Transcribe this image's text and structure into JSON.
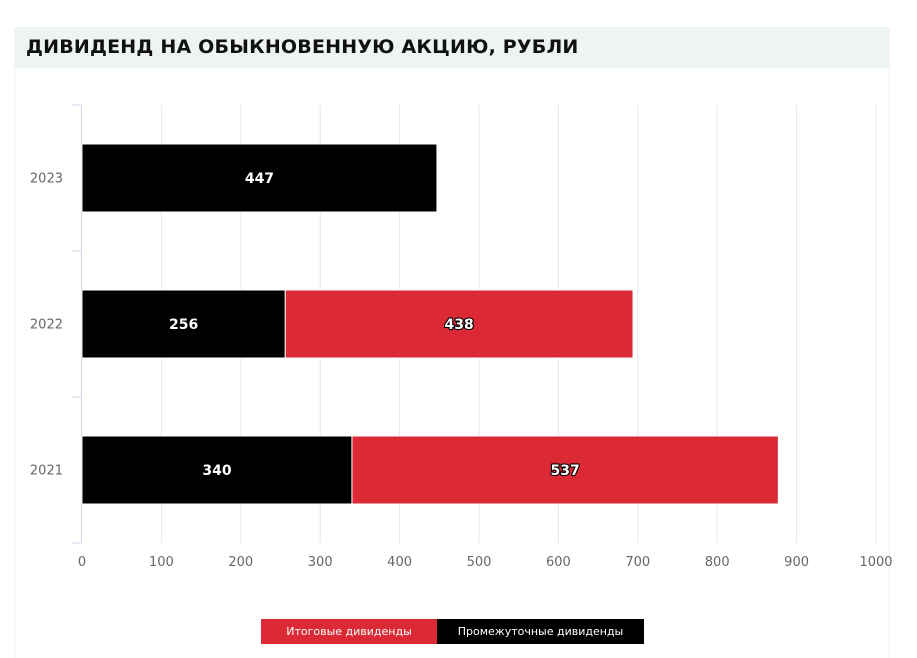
{
  "header": {
    "title": "ДИВИДЕНД НА ОБЫКНОВЕННУЮ АКЦИЮ, РУБЛИ"
  },
  "legend": {
    "final_label": "Итоговые дивиденды",
    "interim_label": "Промежуточные дивиденды"
  },
  "colors": {
    "final": "#db2a36",
    "interim": "#000000",
    "grid": "#e3e7ea",
    "axis": "#c9d6e3",
    "tick_text": "#666666"
  },
  "chart_data": {
    "type": "bar",
    "orientation": "horizontal",
    "stacked": true,
    "title": "ДИВИДЕНД НА ОБЫКНОВЕННУЮ АКЦИЮ, РУБЛИ",
    "categories": [
      "2023",
      "2022",
      "2021"
    ],
    "series": [
      {
        "name": "Промежуточные дивиденды",
        "color": "#000000",
        "values": [
          447,
          256,
          340
        ]
      },
      {
        "name": "Итоговые дивиденды",
        "color": "#db2a36",
        "values": [
          0,
          438,
          537
        ]
      }
    ],
    "xlim": [
      0,
      1000
    ],
    "xticks": [
      "0",
      "100",
      "200",
      "300",
      "400",
      "500",
      "600",
      "700",
      "800",
      "900",
      "1000"
    ],
    "grid": true,
    "legend_position": "bottom",
    "data_labels": true
  }
}
